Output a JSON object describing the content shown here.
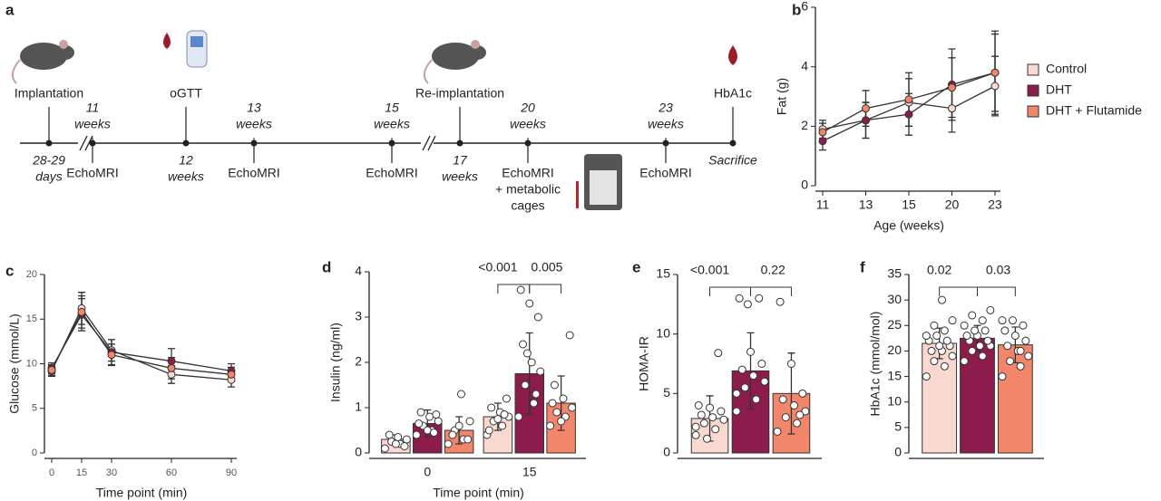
{
  "timeline": {
    "panel": "a",
    "events": [
      {
        "above": [
          "Implantation"
        ],
        "below": [
          "28-29",
          "days"
        ]
      },
      {
        "above": [
          "11",
          "weeks"
        ],
        "below": [
          "EchoMRI"
        ]
      },
      {
        "above": [
          "oGTT"
        ],
        "below": [
          "12",
          "weeks"
        ]
      },
      {
        "above": [
          "13",
          "weeks"
        ],
        "below": [
          "EchoMRI"
        ]
      },
      {
        "above": [
          "15",
          "weeks"
        ],
        "below": [
          "EchoMRI"
        ]
      },
      {
        "above": [
          "Re-implantation"
        ],
        "below": [
          "17",
          "weeks"
        ]
      },
      {
        "above": [
          "20",
          "weeks"
        ],
        "below": [
          "EchoMRI",
          "+ metabolic",
          "cages"
        ]
      },
      {
        "above": [
          "23",
          "weeks"
        ],
        "below": [
          "EchoMRI"
        ]
      },
      {
        "above": [
          "HbA1c"
        ],
        "below": [
          "Sacrifice"
        ]
      }
    ]
  },
  "chart_data": [
    {
      "type": "line",
      "panel": "b",
      "xlabel": "Age (weeks)",
      "ylabel": "Fat (g)",
      "categories": [
        "11",
        "13",
        "15",
        "20",
        "23"
      ],
      "ylim": [
        0,
        6
      ],
      "yticks": [
        0,
        2,
        4,
        6
      ],
      "legend": "right",
      "series": [
        {
          "name": "Control",
          "color": "#f9d9cf",
          "values": [
            1.9,
            2.2,
            2.8,
            2.6,
            3.35
          ],
          "errors": [
            0.3,
            0.6,
            0.8,
            0.8,
            1.0
          ]
        },
        {
          "name": "DHT",
          "color": "#8c1c4c",
          "values": [
            1.5,
            2.2,
            2.4,
            3.4,
            3.8
          ],
          "errors": [
            0.3,
            0.6,
            0.7,
            1.2,
            1.4
          ]
        },
        {
          "name": "DHT + Flutamide",
          "color": "#f2866a",
          "values": [
            1.8,
            2.6,
            2.9,
            3.3,
            3.8
          ],
          "errors": [
            0.3,
            0.6,
            0.9,
            1.0,
            1.3
          ]
        }
      ]
    },
    {
      "type": "line",
      "panel": "c",
      "xlabel": "Time point (min)",
      "ylabel": "Glucose (mmol/L)",
      "x": [
        0,
        15,
        30,
        60,
        90
      ],
      "xlim": [
        0,
        90
      ],
      "xticks": [
        0,
        15,
        30,
        60,
        90
      ],
      "ylim": [
        0,
        20
      ],
      "yticks": [
        0,
        5,
        10,
        15,
        20
      ],
      "series": [
        {
          "name": "Control",
          "color": "#f9d9cf",
          "values": [
            9.2,
            16.2,
            11.5,
            8.8,
            8.2
          ],
          "errors": [
            0.6,
            1.8,
            1.2,
            1.0,
            0.8
          ]
        },
        {
          "name": "DHT",
          "color": "#8c1c4c",
          "values": [
            9.5,
            15.5,
            11.3,
            10.3,
            9.2
          ],
          "errors": [
            0.6,
            1.8,
            1.4,
            1.4,
            0.8
          ]
        },
        {
          "name": "DHT + Flutamide",
          "color": "#f2866a",
          "values": [
            9.3,
            15.8,
            11.0,
            9.5,
            8.8
          ],
          "errors": [
            0.6,
            1.8,
            1.2,
            1.2,
            0.8
          ]
        }
      ]
    },
    {
      "type": "bar",
      "panel": "d",
      "xlabel": "Time point (min)",
      "ylabel": "Insulin (ng/ml)",
      "categories": [
        "0",
        "15"
      ],
      "ylim": [
        0,
        4
      ],
      "yticks": [
        0,
        1,
        2,
        3,
        4
      ],
      "annotations": [
        "<0.001",
        "0.005"
      ],
      "series": [
        {
          "name": "Control",
          "color": "#f9d9cf",
          "values": [
            0.3,
            0.8
          ],
          "errors": [
            0.1,
            0.3
          ],
          "points": [
            [
              0.1,
              0.2,
              0.25,
              0.3,
              0.35,
              0.4,
              0.15,
              0.2
            ],
            [
              0.4,
              0.6,
              0.7,
              0.8,
              0.9,
              1.0,
              1.2,
              0.75,
              0.5,
              0.85
            ]
          ]
        },
        {
          "name": "DHT",
          "color": "#8c1c4c",
          "values": [
            0.65,
            1.75
          ],
          "errors": [
            0.3,
            0.9
          ],
          "points": [
            [
              0.4,
              0.5,
              0.6,
              0.7,
              0.8,
              0.9,
              0.85,
              0.5,
              0.65,
              0.45
            ],
            [
              0.8,
              1.1,
              1.5,
              1.8,
              2.0,
              2.4,
              3.0,
              3.3,
              3.6,
              1.3,
              2.2
            ]
          ]
        },
        {
          "name": "DHT + Flutamide",
          "color": "#f2866a",
          "values": [
            0.5,
            1.1
          ],
          "errors": [
            0.3,
            0.6
          ],
          "points": [
            [
              0.2,
              0.3,
              0.5,
              0.7,
              1.3,
              0.4,
              0.3,
              0.6
            ],
            [
              0.6,
              0.8,
              0.9,
              1.0,
              1.2,
              1.5,
              2.6,
              0.7,
              1.1
            ]
          ]
        }
      ]
    },
    {
      "type": "bar",
      "panel": "e",
      "ylabel": "HOMA-IR",
      "categories": [
        null
      ],
      "ylim": [
        0,
        15
      ],
      "yticks": [
        0,
        5,
        10,
        15
      ],
      "annotations": [
        "<0.001",
        "0.22"
      ],
      "series": [
        {
          "name": "Control",
          "color": "#f9d9cf",
          "values": [
            2.9
          ],
          "errors": [
            1.9
          ],
          "points": [
            [
              1.5,
              2,
              2.5,
              2.8,
              3,
              3.2,
              3.5,
              3.8,
              4,
              8.4,
              1.2,
              2.2
            ]
          ]
        },
        {
          "name": "DHT",
          "color": "#8c1c4c",
          "values": [
            6.9
          ],
          "errors": [
            3.2
          ],
          "points": [
            [
              3.5,
              4.5,
              5.5,
              6,
              6.5,
              7,
              7.5,
              8.5,
              13,
              13,
              12.5,
              5
            ]
          ]
        },
        {
          "name": "DHT + Flutamide",
          "color": "#f2866a",
          "values": [
            5.0
          ],
          "errors": [
            3.4
          ],
          "points": [
            [
              1.8,
              2.5,
              3,
              3.5,
              4,
              4.5,
              5,
              7.5,
              12.7,
              3.2
            ]
          ]
        }
      ]
    },
    {
      "type": "bar",
      "panel": "f",
      "ylabel": "HbA1c (mmol/mol)",
      "categories": [
        null
      ],
      "ylim": [
        0,
        35
      ],
      "yticks": [
        0,
        5,
        10,
        15,
        20,
        25,
        30,
        35
      ],
      "annotations": [
        "0.02",
        "0.03"
      ],
      "series": [
        {
          "name": "Control",
          "color": "#f9d9cf",
          "values": [
            21.5
          ],
          "errors": [
            3.0
          ],
          "points": [
            [
              15,
              17,
              18,
              19,
              20,
              20,
              21,
              21,
              22,
              22,
              23,
              23,
              24,
              25,
              26,
              30
            ]
          ]
        },
        {
          "name": "DHT",
          "color": "#8c1c4c",
          "values": [
            22.5
          ],
          "errors": [
            2.5
          ],
          "points": [
            [
              18,
              19,
              20,
              21,
              21,
              22,
              22,
              23,
              23,
              24,
              24,
              25,
              26,
              27,
              28
            ]
          ]
        },
        {
          "name": "DHT + Flutamide",
          "color": "#f2866a",
          "values": [
            21.2
          ],
          "errors": [
            3.5
          ],
          "points": [
            [
              15,
              17,
              18,
              19,
              20,
              21,
              22,
              23,
              24,
              25,
              26,
              26,
              20
            ]
          ]
        }
      ]
    }
  ]
}
